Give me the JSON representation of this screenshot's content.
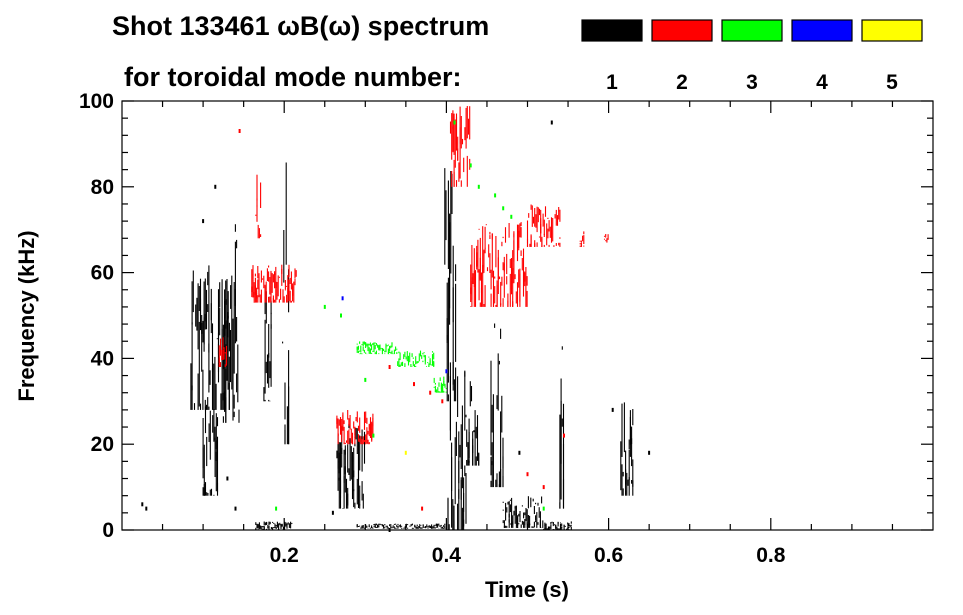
{
  "chart_data": {
    "type": "scatter",
    "title": "Shot 133461 ωB(ω) spectrum",
    "subtitle": "for toroidal mode number:",
    "xlabel": "Time (s)",
    "ylabel": "Frequency (kHz)",
    "xlim": [
      0.0,
      1.0
    ],
    "ylim": [
      0,
      100
    ],
    "x_ticks": [
      "0.2",
      "0.4",
      "0.6",
      "0.8"
    ],
    "y_ticks": [
      "0",
      "20",
      "40",
      "60",
      "80",
      "100"
    ],
    "grid": false,
    "legend_position": "top-right",
    "series": [
      {
        "name": "1",
        "color": "#000000",
        "blobs": [
          {
            "t0": 0.085,
            "t1": 0.135,
            "f0": 28,
            "f1": 62
          },
          {
            "t0": 0.1,
            "t1": 0.118,
            "f0": 8,
            "f1": 30
          },
          {
            "t0": 0.125,
            "t1": 0.145,
            "f0": 25,
            "f1": 72
          },
          {
            "t0": 0.175,
            "t1": 0.185,
            "f0": 30,
            "f1": 60
          },
          {
            "t0": 0.198,
            "t1": 0.206,
            "f0": 20,
            "f1": 88
          },
          {
            "t0": 0.165,
            "t1": 0.21,
            "f0": 0,
            "f1": 2
          },
          {
            "t0": 0.265,
            "t1": 0.3,
            "f0": 5,
            "f1": 25
          },
          {
            "t0": 0.29,
            "t1": 0.4,
            "f0": 0.3,
            "f1": 1.5
          },
          {
            "t0": 0.398,
            "t1": 0.412,
            "f0": 30,
            "f1": 86
          },
          {
            "t0": 0.402,
            "t1": 0.425,
            "f0": 0,
            "f1": 42
          },
          {
            "t0": 0.425,
            "t1": 0.44,
            "f0": 15,
            "f1": 35
          },
          {
            "t0": 0.455,
            "t1": 0.47,
            "f0": 10,
            "f1": 50
          },
          {
            "t0": 0.47,
            "t1": 0.52,
            "f0": 0.5,
            "f1": 8
          },
          {
            "t0": 0.52,
            "t1": 0.555,
            "f0": 0,
            "f1": 2
          },
          {
            "t0": 0.54,
            "t1": 0.545,
            "f0": 5,
            "f1": 50
          },
          {
            "t0": 0.615,
            "t1": 0.63,
            "f0": 8,
            "f1": 30
          }
        ],
        "points": [
          {
            "t": 0.025,
            "f": 6
          },
          {
            "t": 0.03,
            "f": 5
          },
          {
            "t": 0.1,
            "f": 72
          },
          {
            "t": 0.115,
            "f": 80
          },
          {
            "t": 0.13,
            "f": 12
          },
          {
            "t": 0.14,
            "f": 5
          },
          {
            "t": 0.26,
            "f": 4
          },
          {
            "t": 0.33,
            "f": 0
          },
          {
            "t": 0.49,
            "f": 18
          },
          {
            "t": 0.53,
            "f": 95
          },
          {
            "t": 0.605,
            "f": 28
          },
          {
            "t": 0.65,
            "f": 18
          }
        ]
      },
      {
        "name": "2",
        "color": "#ff0000",
        "blobs": [
          {
            "t0": 0.16,
            "t1": 0.215,
            "f0": 53,
            "f1": 62
          },
          {
            "t0": 0.165,
            "t1": 0.172,
            "f0": 68,
            "f1": 85
          },
          {
            "t0": 0.12,
            "t1": 0.13,
            "f0": 38,
            "f1": 45
          },
          {
            "t0": 0.405,
            "t1": 0.43,
            "f0": 80,
            "f1": 100
          },
          {
            "t0": 0.43,
            "t1": 0.5,
            "f0": 52,
            "f1": 72
          },
          {
            "t0": 0.5,
            "t1": 0.54,
            "f0": 66,
            "f1": 76
          },
          {
            "t0": 0.565,
            "t1": 0.57,
            "f0": 66,
            "f1": 70
          },
          {
            "t0": 0.595,
            "t1": 0.6,
            "f0": 67,
            "f1": 69
          },
          {
            "t0": 0.265,
            "t1": 0.31,
            "f0": 20,
            "f1": 28
          }
        ],
        "points": [
          {
            "t": 0.145,
            "f": 93
          },
          {
            "t": 0.33,
            "f": 38
          },
          {
            "t": 0.36,
            "f": 34
          },
          {
            "t": 0.38,
            "f": 32
          },
          {
            "t": 0.395,
            "f": 30
          },
          {
            "t": 0.37,
            "f": 5
          },
          {
            "t": 0.5,
            "f": 13
          },
          {
            "t": 0.52,
            "f": 10
          },
          {
            "t": 0.545,
            "f": 22
          }
        ]
      },
      {
        "name": "3",
        "color": "#00ff00",
        "blobs": [
          {
            "t0": 0.29,
            "t1": 0.34,
            "f0": 41,
            "f1": 44
          },
          {
            "t0": 0.34,
            "t1": 0.385,
            "f0": 38,
            "f1": 42
          },
          {
            "t0": 0.385,
            "t1": 0.4,
            "f0": 32,
            "f1": 36
          }
        ],
        "points": [
          {
            "t": 0.41,
            "f": 95
          },
          {
            "t": 0.43,
            "f": 85
          },
          {
            "t": 0.44,
            "f": 80
          },
          {
            "t": 0.46,
            "f": 78
          },
          {
            "t": 0.47,
            "f": 75
          },
          {
            "t": 0.48,
            "f": 73
          },
          {
            "t": 0.25,
            "f": 52
          },
          {
            "t": 0.27,
            "f": 50
          },
          {
            "t": 0.3,
            "f": 35
          },
          {
            "t": 0.31,
            "f": 22
          },
          {
            "t": 0.19,
            "f": 5
          },
          {
            "t": 0.52,
            "f": 5
          }
        ]
      },
      {
        "name": "4",
        "color": "#0000ff",
        "blobs": [],
        "points": [
          {
            "t": 0.272,
            "f": 54
          },
          {
            "t": 0.4,
            "f": 37
          }
        ]
      },
      {
        "name": "5",
        "color": "#ffff00",
        "blobs": [],
        "points": [
          {
            "t": 0.35,
            "f": 18
          }
        ]
      }
    ]
  }
}
